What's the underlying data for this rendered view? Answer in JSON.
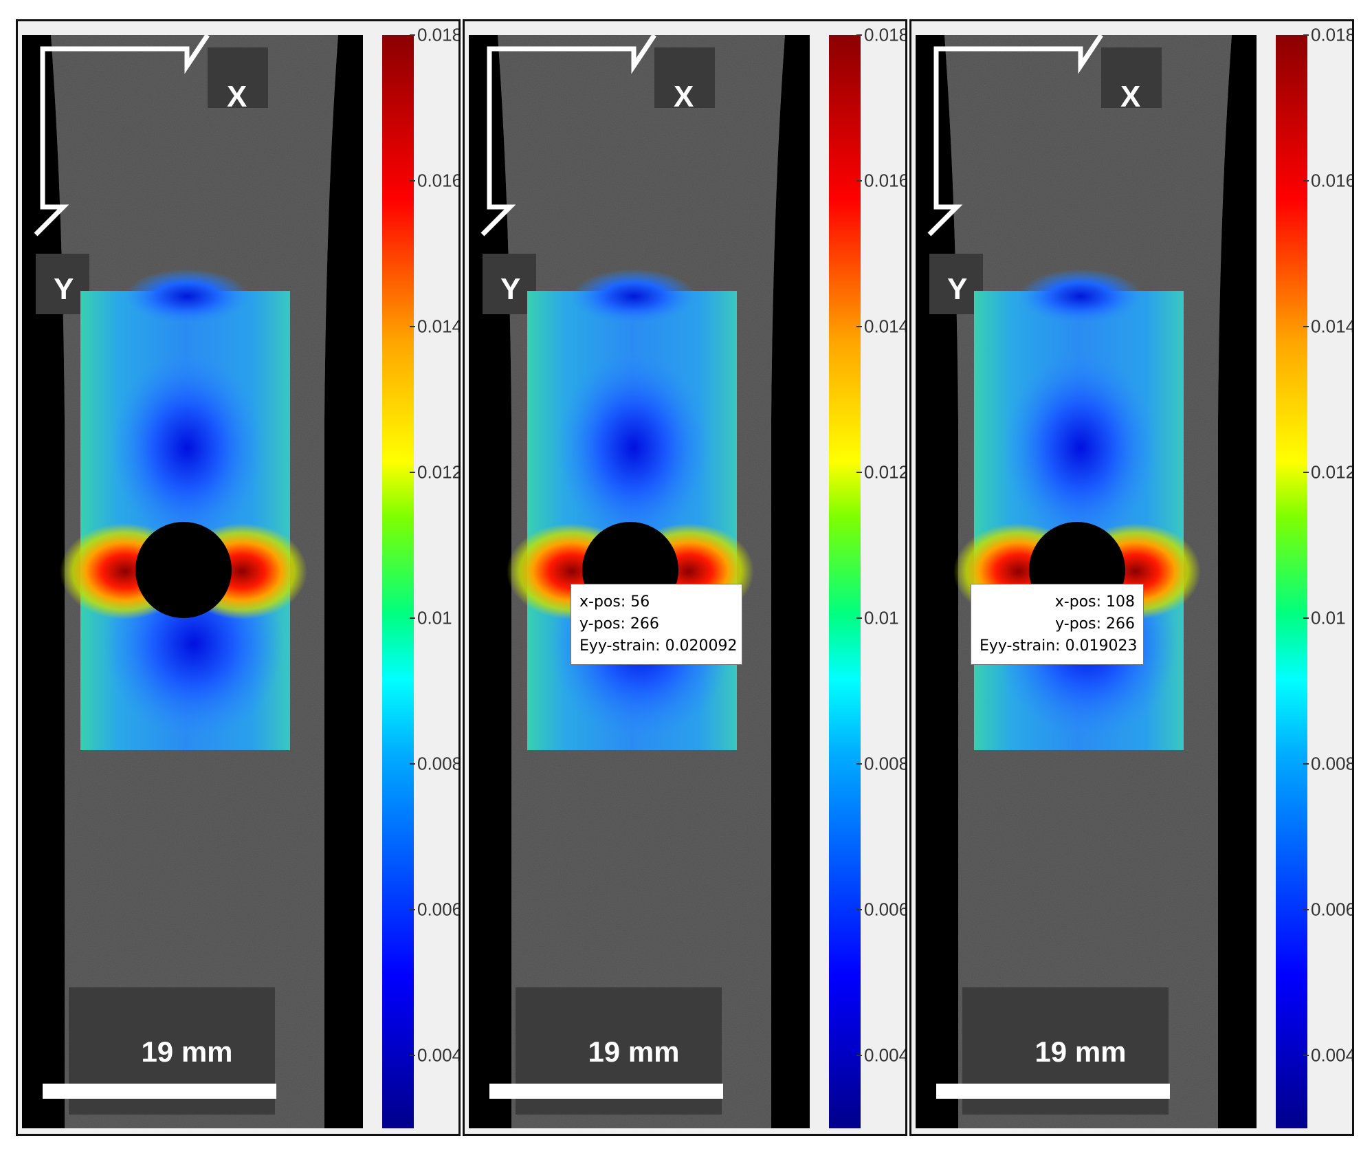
{
  "colorbar": {
    "ticks": [
      "0.018",
      "0.016",
      "0.014",
      "0.012",
      "0.01",
      "0.008",
      "0.006",
      "0.004"
    ],
    "max": 0.018,
    "min": 0.003,
    "colormap": "jet"
  },
  "panels": [
    {
      "x_label": "X",
      "y_label": "Y",
      "scale_bar": "19 mm",
      "tooltip": null
    },
    {
      "x_label": "X",
      "y_label": "Y",
      "scale_bar": "19 mm",
      "tooltip": {
        "line1": "x-pos: 56",
        "line2": "y-pos: 266",
        "line3": "Eyy-strain: 0.020092"
      }
    },
    {
      "x_label": "X",
      "y_label": "Y",
      "scale_bar": "19 mm",
      "tooltip": {
        "line1": "x-pos: 108",
        "line2": "y-pos: 266",
        "line3": "Eyy-strain: 0.019023"
      }
    }
  ],
  "colors": {
    "specimen_gray": "#5e5e5e",
    "background_black": "#000000",
    "hole": "#000000"
  }
}
